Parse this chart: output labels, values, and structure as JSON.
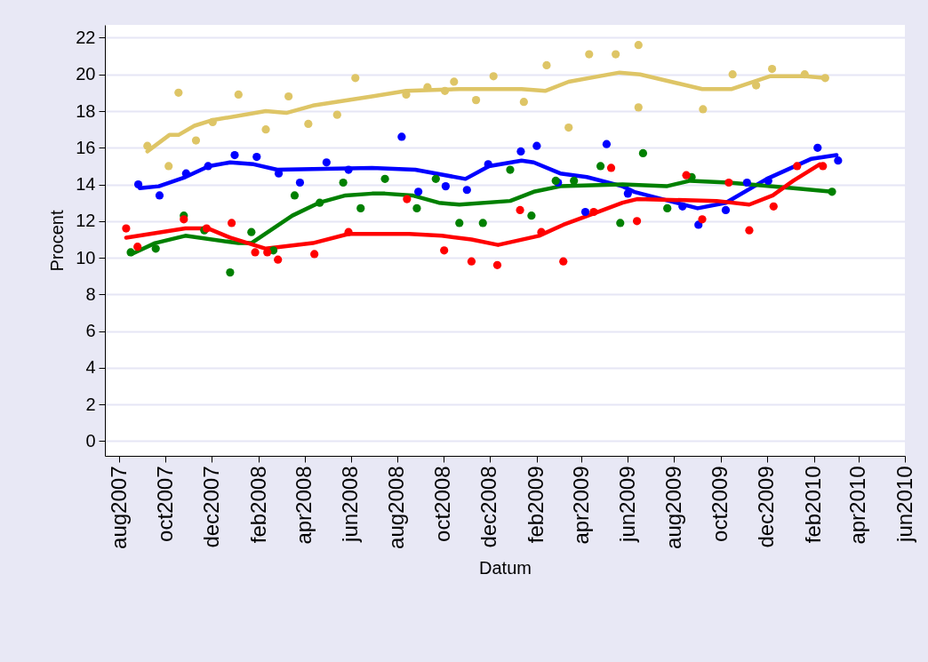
{
  "chart_data": {
    "type": "line",
    "xlabel": "Datum",
    "ylabel": "Procent",
    "xlim": [
      "2007-07-13",
      "2010-06-01"
    ],
    "xticks": [
      {
        "value": "2007-08-01",
        "label": "aug2007"
      },
      {
        "value": "2007-10-01",
        "label": "oct2007"
      },
      {
        "value": "2007-12-01",
        "label": "dec2007"
      },
      {
        "value": "2008-02-01",
        "label": "feb2008"
      },
      {
        "value": "2008-04-01",
        "label": "apr2008"
      },
      {
        "value": "2008-06-01",
        "label": "jun2008"
      },
      {
        "value": "2008-08-01",
        "label": "aug2008"
      },
      {
        "value": "2008-10-01",
        "label": "oct2008"
      },
      {
        "value": "2008-12-01",
        "label": "dec2008"
      },
      {
        "value": "2009-02-01",
        "label": "feb2009"
      },
      {
        "value": "2009-04-01",
        "label": "apr2009"
      },
      {
        "value": "2009-06-01",
        "label": "jun2009"
      },
      {
        "value": "2009-08-01",
        "label": "aug2009"
      },
      {
        "value": "2009-10-01",
        "label": "oct2009"
      },
      {
        "value": "2009-12-01",
        "label": "dec2009"
      },
      {
        "value": "2010-02-01",
        "label": "feb2010"
      },
      {
        "value": "2010-04-01",
        "label": "apr2010"
      },
      {
        "value": "2010-06-01",
        "label": "jun2010"
      }
    ],
    "ylim": [
      -0.8,
      22.7
    ],
    "yticks": [
      0,
      2,
      4,
      6,
      8,
      10,
      12,
      14,
      16,
      18,
      20,
      22
    ],
    "grid": "y",
    "marker": "circle",
    "line_style": "solid",
    "series": [
      {
        "type": "scatter",
        "color": "#dec566",
        "x": [
          "2007-09-07",
          "2007-10-18",
          "2007-10-05",
          "2007-11-10",
          "2007-12-02",
          "2008-01-05",
          "2008-02-10",
          "2008-03-11",
          "2008-04-06",
          "2008-05-14",
          "2008-06-07",
          "2008-08-13",
          "2008-09-10",
          "2008-10-03",
          "2008-10-15",
          "2008-11-13",
          "2008-12-06",
          "2009-01-15",
          "2009-02-14",
          "2009-03-15",
          "2009-04-11",
          "2009-05-16",
          "2009-06-15",
          "2009-06-15",
          "2009-09-08",
          "2009-10-17",
          "2009-11-17",
          "2009-12-08",
          "2010-01-20",
          "2010-02-16"
        ],
        "values": [
          16.1,
          19.0,
          15.0,
          16.4,
          17.4,
          18.9,
          17.0,
          18.8,
          17.3,
          17.8,
          19.8,
          18.9,
          19.3,
          19.1,
          19.6,
          18.6,
          19.9,
          18.5,
          20.5,
          17.1,
          21.1,
          21.1,
          21.6,
          18.2,
          18.1,
          20.0,
          19.4,
          20.3,
          20.0,
          19.8
        ]
      },
      {
        "type": "scatter",
        "color": "#0000ff",
        "x": [
          "2007-08-26",
          "2007-09-23",
          "2007-10-28",
          "2007-11-26",
          "2007-12-31",
          "2008-01-29",
          "2008-02-27",
          "2008-03-26",
          "2008-04-30",
          "2008-05-29",
          "2008-08-07",
          "2008-08-29",
          "2008-10-04",
          "2008-11-01",
          "2008-11-29",
          "2009-01-11",
          "2009-02-01",
          "2009-03-01",
          "2009-04-06",
          "2009-05-04",
          "2009-06-01",
          "2009-08-12",
          "2009-09-02",
          "2009-10-08",
          "2009-11-05",
          "2009-12-03",
          "2010-02-06",
          "2010-03-05"
        ],
        "values": [
          14.0,
          13.4,
          14.6,
          15.0,
          15.6,
          15.5,
          14.6,
          14.1,
          15.2,
          14.8,
          16.6,
          13.6,
          13.9,
          13.7,
          15.1,
          15.8,
          16.1,
          14.1,
          12.5,
          16.2,
          13.5,
          12.8,
          11.8,
          12.6,
          14.1,
          14.2,
          16.0,
          15.3
        ]
      },
      {
        "type": "scatter",
        "color": "#008000",
        "x": [
          "2007-08-16",
          "2007-09-18",
          "2007-10-25",
          "2007-11-21",
          "2007-12-25",
          "2008-01-22",
          "2008-02-20",
          "2008-03-19",
          "2008-04-21",
          "2008-05-22",
          "2008-06-14",
          "2008-07-16",
          "2008-08-27",
          "2008-09-21",
          "2008-10-22",
          "2008-11-22",
          "2008-12-28",
          "2009-01-25",
          "2009-02-26",
          "2009-03-22",
          "2009-04-26",
          "2009-05-22",
          "2009-06-21",
          "2009-07-23",
          "2009-08-24",
          "2010-02-25"
        ],
        "values": [
          10.3,
          10.5,
          12.3,
          11.5,
          9.2,
          11.4,
          10.4,
          13.4,
          13.0,
          14.1,
          12.7,
          14.3,
          12.7,
          14.3,
          11.9,
          11.9,
          14.8,
          12.3,
          14.2,
          14.2,
          15.0,
          11.9,
          15.7,
          12.7,
          14.4,
          13.6
        ]
      },
      {
        "type": "scatter",
        "color": "#ff0000",
        "x": [
          "2007-08-10",
          "2007-08-25",
          "2007-10-25",
          "2007-11-24",
          "2007-12-27",
          "2008-01-27",
          "2008-02-12",
          "2008-02-26",
          "2008-04-14",
          "2008-05-29",
          "2008-08-14",
          "2008-10-02",
          "2008-11-07",
          "2008-12-11",
          "2009-01-10",
          "2009-02-07",
          "2009-03-08",
          "2009-04-17",
          "2009-05-10",
          "2009-06-13",
          "2009-08-17",
          "2009-09-07",
          "2009-10-12",
          "2009-11-08",
          "2009-12-10",
          "2010-01-10",
          "2010-02-13"
        ],
        "values": [
          11.6,
          10.6,
          12.1,
          11.6,
          11.9,
          10.3,
          10.3,
          9.9,
          10.2,
          11.4,
          13.2,
          10.4,
          9.8,
          9.6,
          12.6,
          11.4,
          9.8,
          12.5,
          14.9,
          12.0,
          14.5,
          12.1,
          14.1,
          11.5,
          12.8,
          15.0,
          15.0
        ]
      },
      {
        "color": "#dec566",
        "marker": "none",
        "x": [
          "2007-09-07",
          "2007-10-06",
          "2007-10-18",
          "2007-11-08",
          "2007-12-01",
          "2008-02-10",
          "2008-03-08",
          "2008-04-12",
          "2008-06-29",
          "2008-08-13",
          "2008-10-22",
          "2009-01-12",
          "2009-02-12",
          "2009-03-15",
          "2009-05-21",
          "2009-06-17",
          "2009-09-07",
          "2009-10-16",
          "2009-12-05",
          "2010-01-21",
          "2010-02-16"
        ],
        "values": [
          15.8,
          16.7,
          16.7,
          17.2,
          17.5,
          18.0,
          17.9,
          18.3,
          18.8,
          19.1,
          19.2,
          19.2,
          19.1,
          19.6,
          20.1,
          20.0,
          19.2,
          19.2,
          19.9,
          19.9,
          19.8
        ]
      },
      {
        "color": "#0000ff",
        "marker": "none",
        "x": [
          "2007-08-28",
          "2007-09-22",
          "2007-10-27",
          "2007-11-27",
          "2007-12-25",
          "2008-01-25",
          "2008-02-25",
          "2008-06-29",
          "2008-08-25",
          "2008-10-30",
          "2008-11-30",
          "2009-01-12",
          "2009-01-28",
          "2009-03-04",
          "2009-04-08",
          "2009-05-25",
          "2009-06-09",
          "2009-09-01",
          "2009-10-08",
          "2009-12-01",
          "2010-01-29",
          "2010-03-03"
        ],
        "values": [
          13.8,
          13.9,
          14.4,
          15.0,
          15.2,
          15.1,
          14.8,
          14.9,
          14.8,
          14.3,
          15.0,
          15.3,
          15.2,
          14.6,
          14.4,
          13.9,
          13.6,
          12.7,
          13.0,
          14.3,
          15.4,
          15.6
        ]
      },
      {
        "color": "#008000",
        "marker": "none",
        "x": [
          "2007-08-17",
          "2007-09-17",
          "2007-10-27",
          "2008-01-05",
          "2008-01-22",
          "2008-03-16",
          "2008-04-20",
          "2008-05-25",
          "2008-06-29",
          "2008-07-16",
          "2008-08-21",
          "2008-09-25",
          "2008-10-22",
          "2008-12-28",
          "2009-01-28",
          "2009-03-04",
          "2009-05-25",
          "2009-07-22",
          "2009-08-22",
          "2009-10-12",
          "2010-01-05",
          "2010-02-25"
        ],
        "values": [
          10.2,
          10.8,
          11.2,
          10.8,
          10.8,
          12.3,
          13.0,
          13.4,
          13.5,
          13.5,
          13.4,
          13.0,
          12.9,
          13.1,
          13.6,
          13.9,
          14.0,
          13.9,
          14.2,
          14.1,
          13.8,
          13.6
        ]
      },
      {
        "color": "#ff0000",
        "marker": "none",
        "x": [
          "2007-08-10",
          "2007-10-27",
          "2007-11-26",
          "2007-12-25",
          "2008-02-10",
          "2008-04-12",
          "2008-05-29",
          "2008-06-29",
          "2008-08-17",
          "2008-09-29",
          "2008-11-07",
          "2008-12-12",
          "2009-02-04",
          "2009-03-08",
          "2009-04-16",
          "2009-05-25",
          "2009-06-13",
          "2009-09-26",
          "2009-11-08",
          "2009-12-09",
          "2010-01-05",
          "2010-02-09"
        ],
        "values": [
          11.1,
          11.6,
          11.6,
          11.1,
          10.5,
          10.8,
          11.3,
          11.3,
          11.3,
          11.2,
          11.0,
          10.7,
          11.2,
          11.8,
          12.4,
          13.0,
          13.2,
          13.1,
          12.9,
          13.4,
          14.2,
          15.1
        ]
      }
    ]
  }
}
